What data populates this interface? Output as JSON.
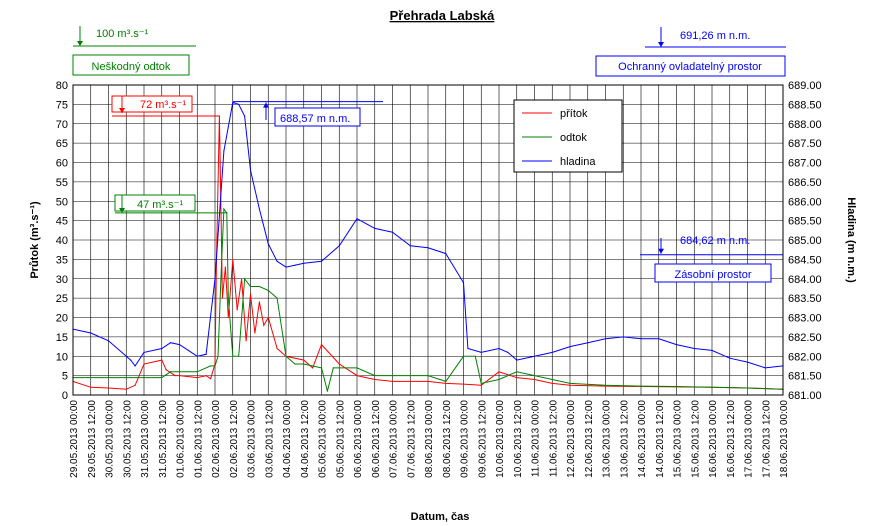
{
  "chart_data": {
    "type": "line",
    "title": "Přehrada Labská",
    "xlabel": "Datum, čas",
    "ylabel_left": "Průtok (m³.s⁻¹)",
    "ylabel_right": "Hladina (m n.m.)",
    "y_left": {
      "min": 0,
      "max": 80,
      "step": 5
    },
    "y_right": {
      "min": 681.0,
      "max": 689.0,
      "step": 0.5
    },
    "x_ticks": [
      "29.05.2013 00:00",
      "29.05.2013 12:00",
      "30.05.2013 00:00",
      "30.05.2013 12:00",
      "31.05.2013 00:00",
      "31.05.2013 12:00",
      "01.06.2013 00:00",
      "01.06.2013 12:00",
      "02.06.2013 00:00",
      "02.06.2013 12:00",
      "03.06.2013 00:00",
      "03.06.2013 12:00",
      "04.06.2013 00:00",
      "04.06.2013 12:00",
      "05.06.2013 00:00",
      "05.06.2013 12:00",
      "06.06.2013 00:00",
      "06.06.2013 12:00",
      "07.06.2013 00:00",
      "07.06.2013 12:00",
      "08.06.2013 00:00",
      "08.06.2013 12:00",
      "09.06.2013 00:00",
      "09.06.2013 12:00",
      "10.06.2013 00:00",
      "10.06.2013 12:00",
      "11.06.2013 00:00",
      "11.06.2013 12:00",
      "12.06.2013 00:00",
      "12.06.2013 12:00",
      "13.06.2013 00:00",
      "13.06.2013 12:00",
      "14.06.2013 00:00",
      "14.06.2013 12:00",
      "15.06.2013 00:00",
      "15.06.2013 12:00",
      "16.06.2013 00:00",
      "16.06.2013 12:00",
      "17.06.2013 00:00",
      "17.06.2013 12:00",
      "18.06.2013 00:00"
    ],
    "grid": true,
    "legend_position": "top-right",
    "series": [
      {
        "name": "přítok",
        "axis": "left",
        "color": "#ff0000",
        "x": [
          "29.05.2013 00:00",
          "29.05.2013 12:00",
          "30.05.2013 00:00",
          "30.05.2013 12:00",
          "30.05.2013 18:00",
          "31.05.2013 00:00",
          "31.05.2013 12:00",
          "31.05.2013 15:00",
          "31.05.2013 21:00",
          "01.06.2013 00:00",
          "01.06.2013 12:00",
          "01.06.2013 18:00",
          "01.06.2013 21:00",
          "02.06.2013 00:00",
          "02.06.2013 01:00",
          "02.06.2013 03:00",
          "02.06.2013 05:00",
          "02.06.2013 07:00",
          "02.06.2013 09:00",
          "02.06.2013 12:00",
          "02.06.2013 15:00",
          "02.06.2013 18:00",
          "02.06.2013 21:00",
          "03.06.2013 00:00",
          "03.06.2013 03:00",
          "03.06.2013 06:00",
          "03.06.2013 09:00",
          "03.06.2013 12:00",
          "03.06.2013 18:00",
          "04.06.2013 00:00",
          "04.06.2013 12:00",
          "04.06.2013 18:00",
          "05.06.2013 00:00",
          "05.06.2013 12:00",
          "06.06.2013 00:00",
          "06.06.2013 12:00",
          "07.06.2013 00:00",
          "07.06.2013 12:00",
          "08.06.2013 00:00",
          "08.06.2013 12:00",
          "09.06.2013 00:00",
          "09.06.2013 12:00",
          "10.06.2013 00:00",
          "10.06.2013 12:00",
          "11.06.2013 00:00",
          "11.06.2013 12:00",
          "12.06.2013 00:00",
          "13.06.2013 00:00",
          "14.06.2013 00:00",
          "15.06.2013 00:00",
          "16.06.2013 00:00",
          "17.06.2013 00:00",
          "18.06.2013 00:00"
        ],
        "y": [
          3.5,
          2,
          1.8,
          1.5,
          2.5,
          8,
          9,
          6.5,
          5,
          5,
          4.5,
          5,
          4.2,
          8,
          35,
          72,
          25,
          33,
          20,
          35,
          22,
          30,
          14,
          26,
          16,
          24,
          18,
          20,
          12,
          10,
          9,
          7,
          13,
          8,
          5,
          4,
          3.5,
          3.5,
          3.5,
          3,
          2.8,
          2.5,
          6,
          4.5,
          4,
          3,
          2.5,
          2.3,
          2.2,
          2.1,
          2,
          1.8,
          1.5
        ]
      },
      {
        "name": "odtok",
        "axis": "left",
        "color": "#008000",
        "x": [
          "29.05.2013 00:00",
          "31.05.2013 12:00",
          "31.05.2013 18:00",
          "01.06.2013 00:00",
          "01.06.2013 12:00",
          "01.06.2013 21:00",
          "02.06.2013 00:00",
          "02.06.2013 02:00",
          "02.06.2013 04:00",
          "02.06.2013 06:00",
          "02.06.2013 08:00",
          "02.06.2013 09:00",
          "02.06.2013 12:00",
          "02.06.2013 16:00",
          "02.06.2013 20:00",
          "03.06.2013 00:00",
          "03.06.2013 06:00",
          "03.06.2013 12:00",
          "03.06.2013 18:00",
          "04.06.2013 00:00",
          "04.06.2013 06:00",
          "04.06.2013 12:00",
          "05.06.2013 00:00",
          "05.06.2013 04:00",
          "05.06.2013 08:00",
          "05.06.2013 12:00",
          "06.06.2013 00:00",
          "06.06.2013 12:00",
          "07.06.2013 00:00",
          "07.06.2013 12:00",
          "08.06.2013 00:00",
          "08.06.2013 12:00",
          "09.06.2013 00:00",
          "09.06.2013 08:00",
          "09.06.2013 12:00",
          "10.06.2013 00:00",
          "10.06.2013 12:00",
          "11.06.2013 00:00",
          "11.06.2013 12:00",
          "12.06.2013 00:00",
          "13.06.2013 00:00",
          "14.06.2013 00:00",
          "15.06.2013 00:00",
          "16.06.2013 00:00",
          "17.06.2013 00:00",
          "18.06.2013 00:00"
        ],
        "y": [
          4.5,
          4.5,
          6,
          6,
          6,
          7.5,
          7.5,
          10,
          30,
          48,
          47,
          25,
          10,
          10,
          30,
          28,
          28,
          27,
          25,
          10,
          8,
          8,
          7,
          1,
          7,
          7,
          7,
          5,
          5,
          5,
          5,
          3.5,
          10,
          10,
          3,
          4,
          6,
          5,
          4,
          3,
          2.5,
          2.3,
          2.2,
          2,
          1.8,
          1.5
        ]
      },
      {
        "name": "hladina",
        "axis": "right",
        "color": "#0000ff",
        "x": [
          "29.05.2013 00:00",
          "29.05.2013 12:00",
          "30.05.2013 00:00",
          "30.05.2013 12:00",
          "30.05.2013 15:00",
          "30.05.2013 18:00",
          "31.05.2013 00:00",
          "31.05.2013 12:00",
          "31.05.2013 18:00",
          "01.06.2013 00:00",
          "01.06.2013 06:00",
          "01.06.2013 12:00",
          "01.06.2013 18:00",
          "02.06.2013 00:00",
          "02.06.2013 06:00",
          "02.06.2013 12:00",
          "02.06.2013 16:00",
          "02.06.2013 20:00",
          "03.06.2013 00:00",
          "03.06.2013 06:00",
          "03.06.2013 12:00",
          "03.06.2013 18:00",
          "04.06.2013 00:00",
          "04.06.2013 06:00",
          "04.06.2013 12:00",
          "05.06.2013 00:00",
          "05.06.2013 12:00",
          "06.06.2013 00:00",
          "06.06.2013 12:00",
          "07.06.2013 00:00",
          "07.06.2013 12:00",
          "08.06.2013 00:00",
          "08.06.2013 12:00",
          "09.06.2013 00:00",
          "09.06.2013 03:00",
          "09.06.2013 12:00",
          "10.06.2013 00:00",
          "10.06.2013 06:00",
          "10.06.2013 12:00",
          "11.06.2013 00:00",
          "11.06.2013 12:00",
          "12.06.2013 00:00",
          "12.06.2013 12:00",
          "13.06.2013 00:00",
          "13.06.2013 12:00",
          "14.06.2013 00:00",
          "14.06.2013 12:00",
          "15.06.2013 00:00",
          "15.06.2013 12:00",
          "16.06.2013 00:00",
          "16.06.2013 12:00",
          "17.06.2013 00:00",
          "17.06.2013 12:00",
          "18.06.2013 00:00"
        ],
        "y": [
          682.7,
          682.6,
          682.4,
          682.0,
          681.9,
          681.75,
          682.1,
          682.2,
          682.35,
          682.3,
          682.15,
          682.0,
          682.05,
          684.0,
          687.3,
          688.55,
          688.5,
          688.2,
          686.8,
          685.8,
          684.9,
          684.45,
          684.3,
          684.35,
          684.4,
          684.45,
          684.85,
          685.55,
          685.3,
          685.2,
          684.85,
          684.8,
          684.65,
          683.9,
          682.2,
          682.1,
          682.2,
          682.1,
          681.9,
          682.0,
          682.1,
          682.25,
          682.35,
          682.45,
          682.5,
          682.45,
          682.45,
          682.3,
          682.2,
          682.15,
          681.95,
          681.85,
          681.7,
          681.75
        ]
      }
    ],
    "annotations": [
      {
        "text": "100 m³.s⁻¹",
        "color": "#008000"
      },
      {
        "text": "Neškodný odtok",
        "color": "#008000"
      },
      {
        "text": "72 m³.s⁻¹",
        "color": "#ff0000"
      },
      {
        "text": "47 m³.s⁻¹",
        "color": "#008000"
      },
      {
        "text": "688,57 m n.m.",
        "color": "#0000ff"
      },
      {
        "text": "691,26 m n.m.",
        "color": "#0000ff"
      },
      {
        "text": "Ochranný ovladatelný prostor",
        "color": "#0000ff"
      },
      {
        "text": "684,62 m n.m.",
        "color": "#0000ff"
      },
      {
        "text": "Zásobní prostor",
        "color": "#0000ff"
      }
    ]
  }
}
